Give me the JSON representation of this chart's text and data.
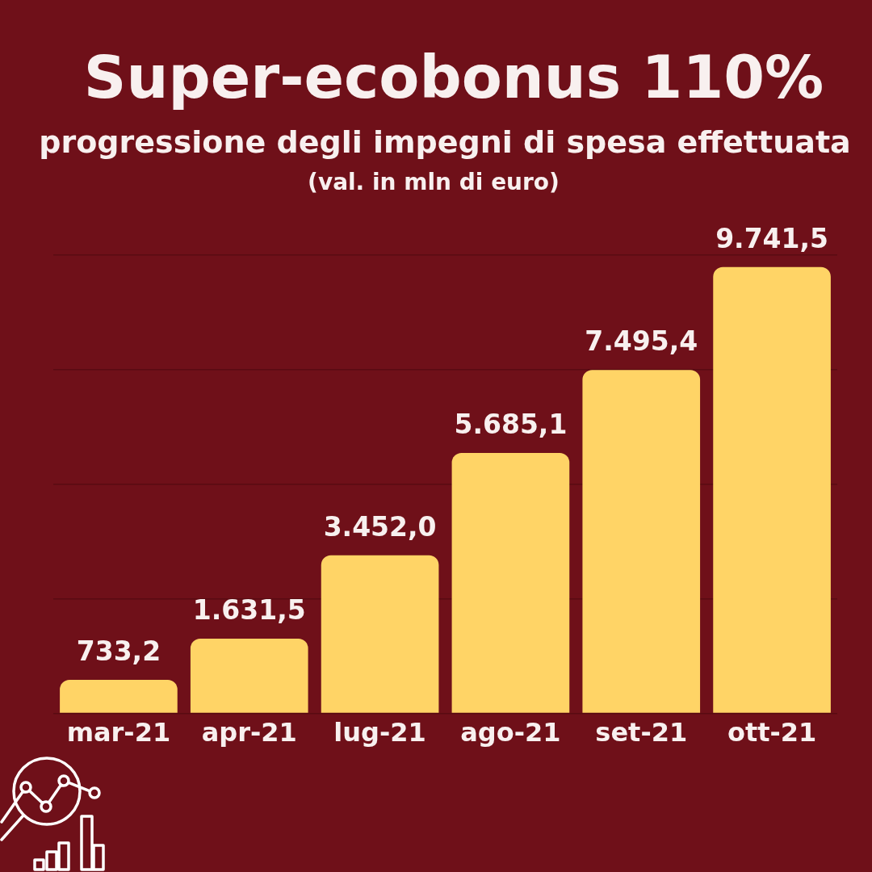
{
  "chart_data": {
    "type": "bar",
    "title": "Super-ecobonus 110%",
    "subtitle": "progressione degli impegni di spesa effettuata",
    "annotations": [
      "(val. in mln di euro)"
    ],
    "categories": [
      "mar-21",
      "apr-21",
      "lug-21",
      "ago-21",
      "set-21",
      "ott-21"
    ],
    "values": [
      733.2,
      1631.5,
      3452.0,
      5685.1,
      7495.4,
      9741.5
    ],
    "value_labels": [
      "733,2",
      "1.631,5",
      "3.452,0",
      "5.685,1",
      "7.495,4",
      "9.741,5"
    ],
    "color": "#ffd466",
    "ylim": [
      0,
      10000
    ],
    "yticks": [
      {
        "value": 0,
        "label": null
      },
      {
        "value": 2500,
        "label": null
      },
      {
        "value": 5000,
        "label": null
      },
      {
        "value": 7500,
        "label": null
      },
      {
        "value": 10000,
        "label": null
      }
    ],
    "grid": "y",
    "tick_labels": "x",
    "legend": false
  }
}
